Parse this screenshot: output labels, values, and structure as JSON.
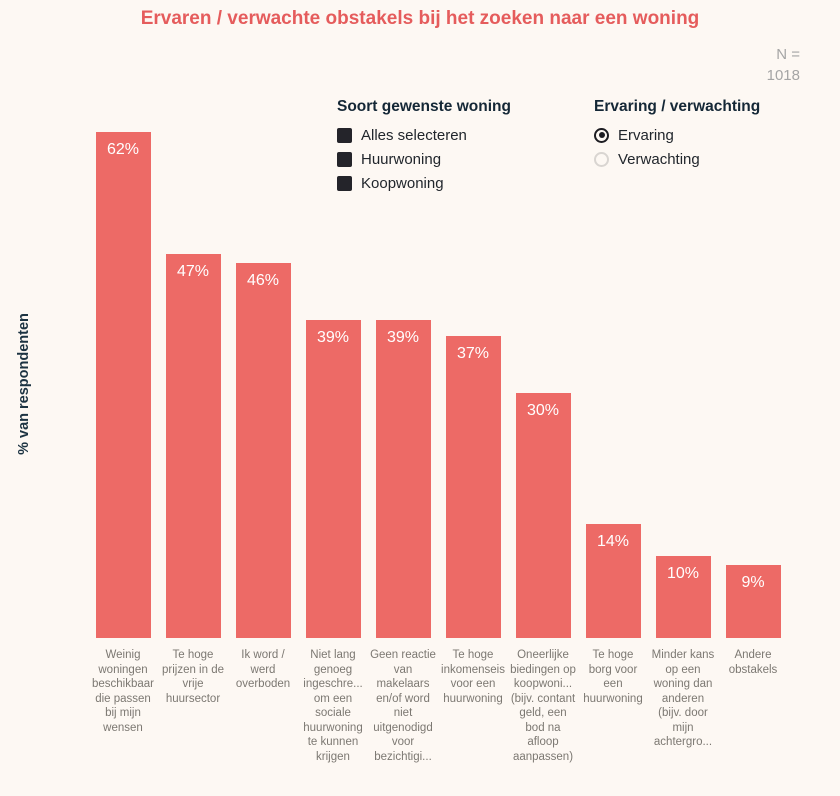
{
  "title": "Ervaren / verwachte obstakels bij het zoeken naar een woning",
  "sample_note": {
    "line1": "N =",
    "line2": "1018"
  },
  "filters": {
    "woning_type": {
      "label": "Soort gewenste woning",
      "options": [
        {
          "label": "Alles selecteren",
          "checked": true
        },
        {
          "label": "Huurwoning",
          "checked": true
        },
        {
          "label": "Koopwoning",
          "checked": true
        }
      ]
    },
    "ervaring_verwachting": {
      "label": "Ervaring / verwachting",
      "options": [
        {
          "label": "Ervaring",
          "selected": true
        },
        {
          "label": "Verwachting",
          "selected": false
        }
      ]
    }
  },
  "chart_data": {
    "type": "bar",
    "title": "Ervaren / verwachte obstakels bij het zoeken naar een woning",
    "xlabel": "",
    "ylabel": "% van respondenten",
    "ylim": [
      0,
      62
    ],
    "grid": false,
    "legend_position": "none",
    "value_suffix": "%",
    "categories": [
      "Weinig woningen beschikbaar die passen bij mijn wensen",
      "Te hoge prijzen in de vrije huursector",
      "Ik word / werd overboden",
      "Niet lang genoeg ingeschre... om een sociale huurwoning te kunnen krijgen",
      "Geen reactie van makelaars en/of word niet uitgenodigd voor bezichtigi...",
      "Te hoge inkomenseis voor een huurwoning",
      "Oneerlijke biedingen op koopwoni... (bijv. contant geld, een bod na afloop aanpassen)",
      "Te hoge borg voor een huurwoning",
      "Minder kans op een woning dan anderen (bijv. door mijn achtergro...",
      "Andere obstakels"
    ],
    "values": [
      62,
      47,
      46,
      39,
      39,
      37,
      30,
      14,
      10,
      9
    ],
    "value_labels": [
      "62%",
      "47%",
      "46%",
      "39%",
      "39%",
      "37%",
      "30%",
      "14%",
      "10%",
      "9%"
    ]
  },
  "colors": {
    "bar": "#ed6a66",
    "title": "#e55c5c",
    "background": "#fdf8f3",
    "legend_text": "#21262c",
    "legend_header": "#142736",
    "category_label": "#7c7872",
    "sample_note": "#a5a5a5"
  }
}
